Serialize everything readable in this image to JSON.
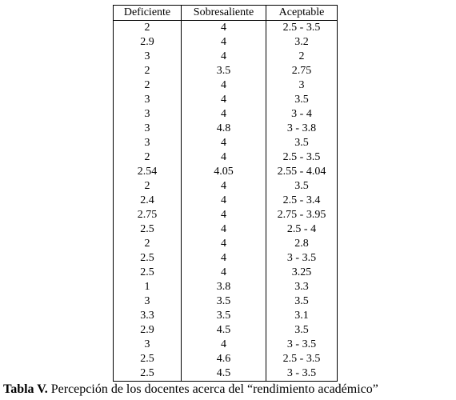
{
  "table": {
    "header": [
      "Deficiente",
      "Sobresaliente",
      "Aceptable"
    ],
    "rows": [
      [
        "2",
        "4",
        "2.5 - 3.5"
      ],
      [
        "2.9",
        "4",
        "3.2"
      ],
      [
        "3",
        "4",
        "2"
      ],
      [
        "2",
        "3.5",
        "2.75"
      ],
      [
        "2",
        "4",
        "3"
      ],
      [
        "3",
        "4",
        "3.5"
      ],
      [
        "3",
        "4",
        "3 - 4"
      ],
      [
        "3",
        "4.8",
        "3 - 3.8"
      ],
      [
        "3",
        "4",
        "3.5"
      ],
      [
        "2",
        "4",
        "2.5 - 3.5"
      ],
      [
        "2.54",
        "4.05",
        "2.55 - 4.04"
      ],
      [
        "2",
        "4",
        "3.5"
      ],
      [
        "2.4",
        "4",
        "2.5 - 3.4"
      ],
      [
        "2.75",
        "4",
        "2.75 - 3.95"
      ],
      [
        "2.5",
        "4",
        "2.5 - 4"
      ],
      [
        "2",
        "4",
        "2.8"
      ],
      [
        "2.5",
        "4",
        "3 - 3.5"
      ],
      [
        "2.5",
        "4",
        "3.25"
      ],
      [
        "1",
        "3.8",
        "3.3"
      ],
      [
        "3",
        "3.5",
        "3.5"
      ],
      [
        "3.3",
        "3.5",
        "3.1"
      ],
      [
        "2.9",
        "4.5",
        "3.5"
      ],
      [
        "3",
        "4",
        "3 - 3.5"
      ],
      [
        "2.5",
        "4.6",
        "2.5 - 3.5"
      ],
      [
        "2.5",
        "4.5",
        "3 - 3.5"
      ]
    ]
  },
  "caption": {
    "label": "Tabla V.",
    "text": "Percepción de los docentes acerca del “rendimiento académico”"
  }
}
